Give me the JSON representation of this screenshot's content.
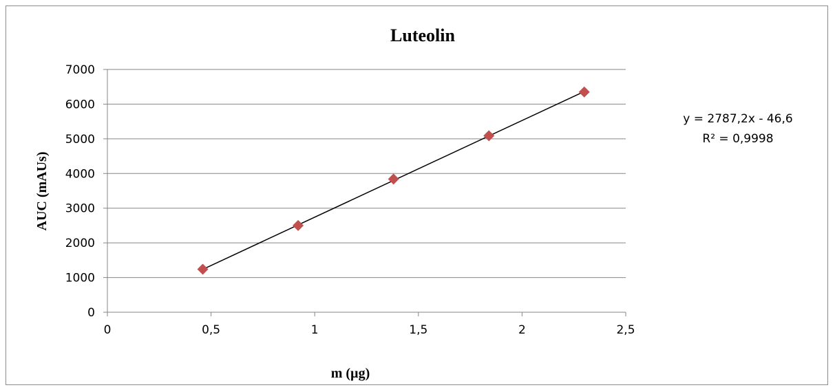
{
  "chart_data": {
    "type": "scatter",
    "title": "Luteolin",
    "xlabel": "m (µg)",
    "ylabel": "AUC (mAUs)",
    "xlim": [
      0,
      2.5
    ],
    "ylim": [
      0,
      7000
    ],
    "x_ticks": [
      "0",
      "0,5",
      "1",
      "1,5",
      "2",
      "2,5"
    ],
    "x_tick_values": [
      0,
      0.5,
      1,
      1.5,
      2,
      2.5
    ],
    "y_ticks": [
      "0",
      "1000",
      "2000",
      "3000",
      "4000",
      "5000",
      "6000",
      "7000"
    ],
    "y_tick_values": [
      0,
      1000,
      2000,
      3000,
      4000,
      5000,
      6000,
      7000
    ],
    "grid": "horizontal",
    "series": [
      {
        "x": [
          0.46,
          0.92,
          1.38,
          1.84,
          2.3
        ],
        "y": [
          1240,
          2500,
          3840,
          5090,
          6350
        ],
        "marker": "diamond",
        "color": "#c0504d"
      }
    ],
    "trendline": {
      "slope": 2787.2,
      "intercept": -46.6,
      "color": "#000000",
      "equation": "y = 2787,2x - 46,6",
      "r_squared": "R² = 0,9998"
    }
  }
}
